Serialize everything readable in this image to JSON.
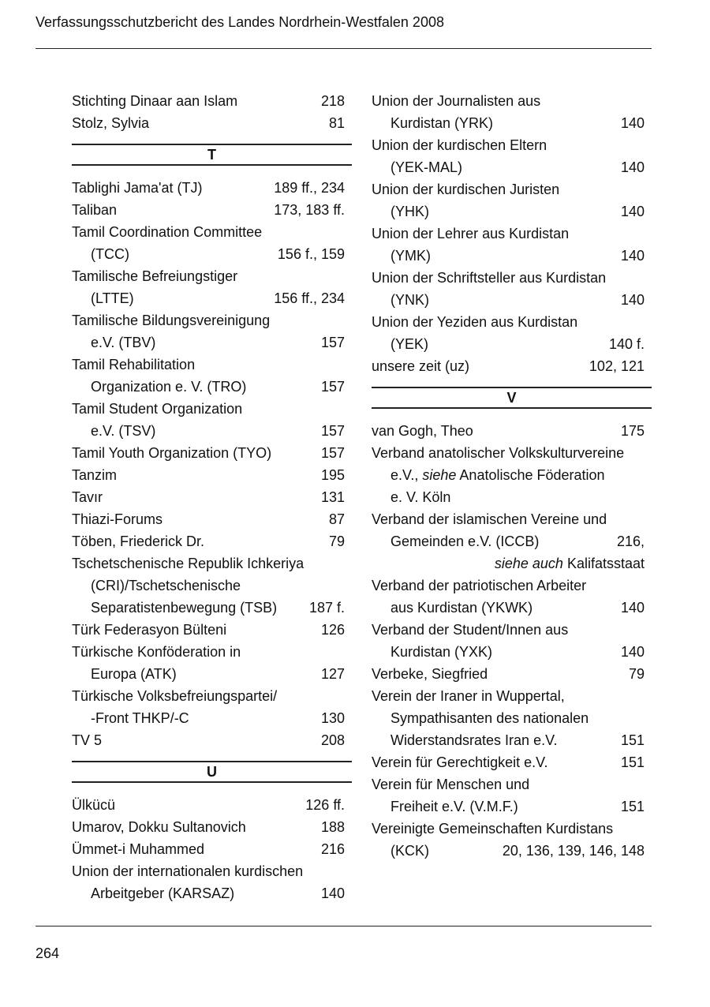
{
  "header": {
    "title": "Verfassungsschutzbericht des Landes Nordrhein-Westfalen 2008"
  },
  "footer": {
    "page_number": "264"
  },
  "columns": [
    [
      {
        "line": {
          "t": "Stichting Dinaar aan Islam",
          "n": "218"
        }
      },
      {
        "line": {
          "t": "Stolz, Sylvia",
          "n": "81"
        }
      },
      {
        "section": "T"
      },
      {
        "line": {
          "t": "Tablighi Jama'at (TJ)",
          "n": "189 ff., 234"
        }
      },
      {
        "line": {
          "t": "Taliban",
          "n": "173, 183 ff."
        }
      },
      {
        "line": {
          "t": "Tamil Coordination Committee"
        }
      },
      {
        "line": {
          "t": "(TCC)",
          "n": "156 f., 159",
          "ind": true
        }
      },
      {
        "line": {
          "t": "Tamilische Befreiungstiger"
        }
      },
      {
        "line": {
          "t": "(LTTE)",
          "n": "156 ff., 234",
          "ind": true
        }
      },
      {
        "line": {
          "t": "Tamilische Bildungsvereinigung"
        }
      },
      {
        "line": {
          "t": "e.V. (TBV)",
          "n": "157",
          "ind": true
        }
      },
      {
        "line": {
          "t": "Tamil Rehabilitation"
        }
      },
      {
        "line": {
          "t": "Organization e. V. (TRO)",
          "n": "157",
          "ind": true
        }
      },
      {
        "line": {
          "t": "Tamil Student Organization"
        }
      },
      {
        "line": {
          "t": "e.V. (TSV)",
          "n": "157",
          "ind": true
        }
      },
      {
        "line": {
          "t": "Tamil Youth Organization (TYO)",
          "n": "157"
        }
      },
      {
        "line": {
          "t": "Tanzim",
          "n": "195"
        }
      },
      {
        "line": {
          "t": "Tavır",
          "n": "131"
        }
      },
      {
        "line": {
          "t": "Thiazi-Forums",
          "n": "87"
        }
      },
      {
        "line": {
          "t": "Töben, Friederick Dr.",
          "n": "79"
        }
      },
      {
        "line": {
          "t": "Tschetschenische Republik Ichkeriya"
        }
      },
      {
        "line": {
          "t": "(CRI)/Tschetschenische",
          "ind": true
        }
      },
      {
        "line": {
          "t": "Separatistenbewegung (TSB)",
          "n": "187 f.",
          "ind": true
        }
      },
      {
        "line": {
          "t": "Türk Federasyon Bülteni",
          "n": "126"
        }
      },
      {
        "line": {
          "t": "Türkische Konföderation in"
        }
      },
      {
        "line": {
          "t": "Europa (ATK)",
          "n": "127",
          "ind": true
        }
      },
      {
        "line": {
          "t": "Türkische Volksbefreiungspartei/"
        }
      },
      {
        "line": {
          "t": "-Front THKP/-C",
          "n": "130",
          "ind": true
        }
      },
      {
        "line": {
          "t": "TV 5",
          "n": "208"
        }
      },
      {
        "section": "U"
      },
      {
        "line": {
          "t": "Ülkücü",
          "n": "126 ff."
        }
      },
      {
        "line": {
          "t": "Umarov, Dokku Sultanovich",
          "n": "188"
        }
      },
      {
        "line": {
          "t": "Ümmet-i Muhammed",
          "n": "216"
        }
      },
      {
        "line": {
          "t": "Union der internationalen kurdischen"
        }
      },
      {
        "line": {
          "t": "Arbeitgeber (KARSAZ)",
          "n": "140",
          "ind": true
        }
      }
    ],
    [
      {
        "line": {
          "t": "Union der Journalisten aus"
        }
      },
      {
        "line": {
          "t": "Kurdistan (YRK)",
          "n": "140",
          "ind": true
        }
      },
      {
        "line": {
          "t": "Union der kurdischen Eltern"
        }
      },
      {
        "line": {
          "t": "(YEK-MAL)",
          "n": "140",
          "ind": true
        }
      },
      {
        "line": {
          "t": "Union der kurdischen Juristen"
        }
      },
      {
        "line": {
          "t": "(YHK)",
          "n": "140",
          "ind": true
        }
      },
      {
        "line": {
          "t": "Union der Lehrer aus Kurdistan"
        }
      },
      {
        "line": {
          "t": "(YMK)",
          "n": "140",
          "ind": true
        }
      },
      {
        "line": {
          "t": "Union der Schriftsteller aus Kurdistan"
        }
      },
      {
        "line": {
          "t": "(YNK)",
          "n": "140",
          "ind": true
        }
      },
      {
        "line": {
          "t": "Union der Yeziden aus Kurdistan"
        }
      },
      {
        "line": {
          "t": "(YEK)",
          "n": "140 f.",
          "ind": true
        }
      },
      {
        "line": {
          "t": "unsere zeit (uz)",
          "n": "102, 121"
        }
      },
      {
        "section": "V"
      },
      {
        "line": {
          "t": "van Gogh, Theo",
          "n": "175"
        }
      },
      {
        "line": {
          "t": "Verband anatolischer Volkskulturvereine"
        }
      },
      {
        "line": {
          "segs": [
            {
              "t": "e.V.,"
            },
            {
              "t": " siehe",
              "it": true
            },
            {
              "t": " Anatolische Föderation"
            }
          ],
          "ind": true
        }
      },
      {
        "line": {
          "t": "e. V. Köln",
          "ind": true
        }
      },
      {
        "line": {
          "t": "Verband der islamischen Vereine und"
        }
      },
      {
        "line": {
          "t": "Gemeinden e.V. (ICCB)",
          "n": "216,",
          "ind": true
        }
      },
      {
        "line": {
          "segs": [
            {
              "t": "siehe auch",
              "it": true
            },
            {
              "t": " Kalifatsstaat"
            }
          ],
          "right": true
        }
      },
      {
        "line": {
          "t": "Verband der patriotischen Arbeiter"
        }
      },
      {
        "line": {
          "t": "aus Kurdistan (YKWK)",
          "n": "140",
          "ind": true
        }
      },
      {
        "line": {
          "t": "Verband der Student/Innen aus"
        }
      },
      {
        "line": {
          "t": "Kurdistan (YXK)",
          "n": "140",
          "ind": true
        }
      },
      {
        "line": {
          "t": "Verbeke, Siegfried",
          "n": "79"
        }
      },
      {
        "line": {
          "t": "Verein der Iraner in Wuppertal,"
        }
      },
      {
        "line": {
          "t": "Sympathisanten des nationalen",
          "ind": true
        }
      },
      {
        "line": {
          "t": "Widerstandsrates Iran e.V.",
          "n": "151",
          "ind": true
        }
      },
      {
        "line": {
          "t": "Verein für Gerechtigkeit e.V.",
          "n": "151"
        }
      },
      {
        "line": {
          "t": "Verein für Menschen und"
        }
      },
      {
        "line": {
          "t": "Freiheit e.V. (V.M.F.)",
          "n": "151",
          "ind": true
        }
      },
      {
        "line": {
          "t": "Vereinigte Gemeinschaften Kurdistans"
        }
      },
      {
        "line": {
          "t": "(KCK)",
          "n": "20, 136, 139, 146, 148",
          "ind": true
        }
      }
    ]
  ]
}
